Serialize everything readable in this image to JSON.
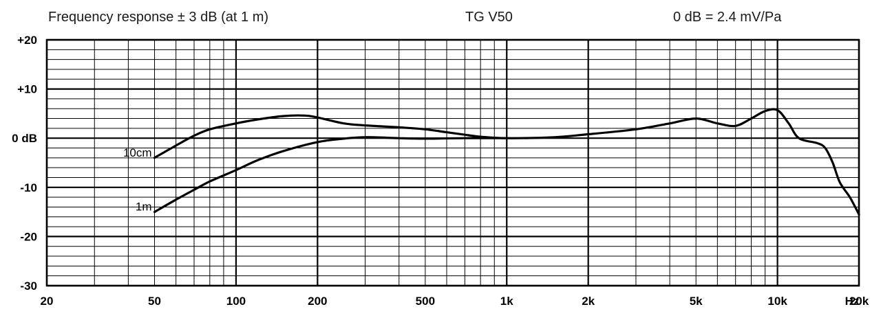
{
  "header": {
    "left": "Frequency response ± 3 dB (at 1 m)",
    "center": "TG V50",
    "right": "0 dB =  2.4 mV/Pa"
  },
  "chart_data": {
    "type": "line",
    "x_scale": "log",
    "xlim": [
      20,
      20000
    ],
    "ylim": [
      -30,
      20
    ],
    "grid": true,
    "x_ticks": [
      {
        "value": 20,
        "label": "20"
      },
      {
        "value": 50,
        "label": "50"
      },
      {
        "value": 100,
        "label": "100"
      },
      {
        "value": 200,
        "label": "200"
      },
      {
        "value": 500,
        "label": "500"
      },
      {
        "value": 1000,
        "label": "1k"
      },
      {
        "value": 2000,
        "label": "2k"
      },
      {
        "value": 5000,
        "label": "5k"
      },
      {
        "value": 10000,
        "label": "10k"
      },
      {
        "value": 20000,
        "label": "20k"
      }
    ],
    "x_unit": "Hz",
    "y_ticks": [
      {
        "value": 20,
        "label": "+20"
      },
      {
        "value": 10,
        "label": "+10"
      },
      {
        "value": 0,
        "label": "0 dB"
      },
      {
        "value": -10,
        "label": "-10"
      },
      {
        "value": -20,
        "label": "-20"
      },
      {
        "value": -30,
        "label": "-30"
      }
    ],
    "series": [
      {
        "name": "10cm",
        "points": [
          [
            50,
            -4
          ],
          [
            60,
            -1.5
          ],
          [
            70,
            0.5
          ],
          [
            80,
            1.8
          ],
          [
            100,
            3
          ],
          [
            120,
            3.8
          ],
          [
            150,
            4.5
          ],
          [
            180,
            4.6
          ],
          [
            200,
            4.2
          ],
          [
            250,
            3
          ],
          [
            300,
            2.6
          ],
          [
            400,
            2.2
          ],
          [
            500,
            1.8
          ],
          [
            600,
            1.2
          ],
          [
            700,
            0.7
          ],
          [
            800,
            0.3
          ],
          [
            1000,
            0
          ],
          [
            1500,
            0.2
          ],
          [
            2000,
            0.8
          ],
          [
            3000,
            1.8
          ],
          [
            4000,
            3
          ],
          [
            5000,
            4
          ],
          [
            6000,
            3
          ],
          [
            7000,
            2.5
          ],
          [
            8000,
            4
          ],
          [
            9000,
            5.5
          ],
          [
            10000,
            5.7
          ],
          [
            11000,
            3
          ],
          [
            12000,
            0
          ],
          [
            14000,
            -1
          ],
          [
            15000,
            -2
          ],
          [
            16000,
            -5
          ],
          [
            17000,
            -9
          ],
          [
            18500,
            -12
          ],
          [
            20000,
            -15.5
          ]
        ]
      },
      {
        "name": "1m",
        "points": [
          [
            50,
            -15
          ],
          [
            60,
            -12.5
          ],
          [
            70,
            -10.5
          ],
          [
            80,
            -8.8
          ],
          [
            100,
            -6.5
          ],
          [
            120,
            -4.5
          ],
          [
            150,
            -2.6
          ],
          [
            200,
            -0.8
          ],
          [
            250,
            -0.1
          ],
          [
            300,
            0.2
          ],
          [
            400,
            0
          ],
          [
            500,
            -0.1
          ],
          [
            700,
            0
          ],
          [
            1000,
            0
          ]
        ]
      }
    ]
  }
}
